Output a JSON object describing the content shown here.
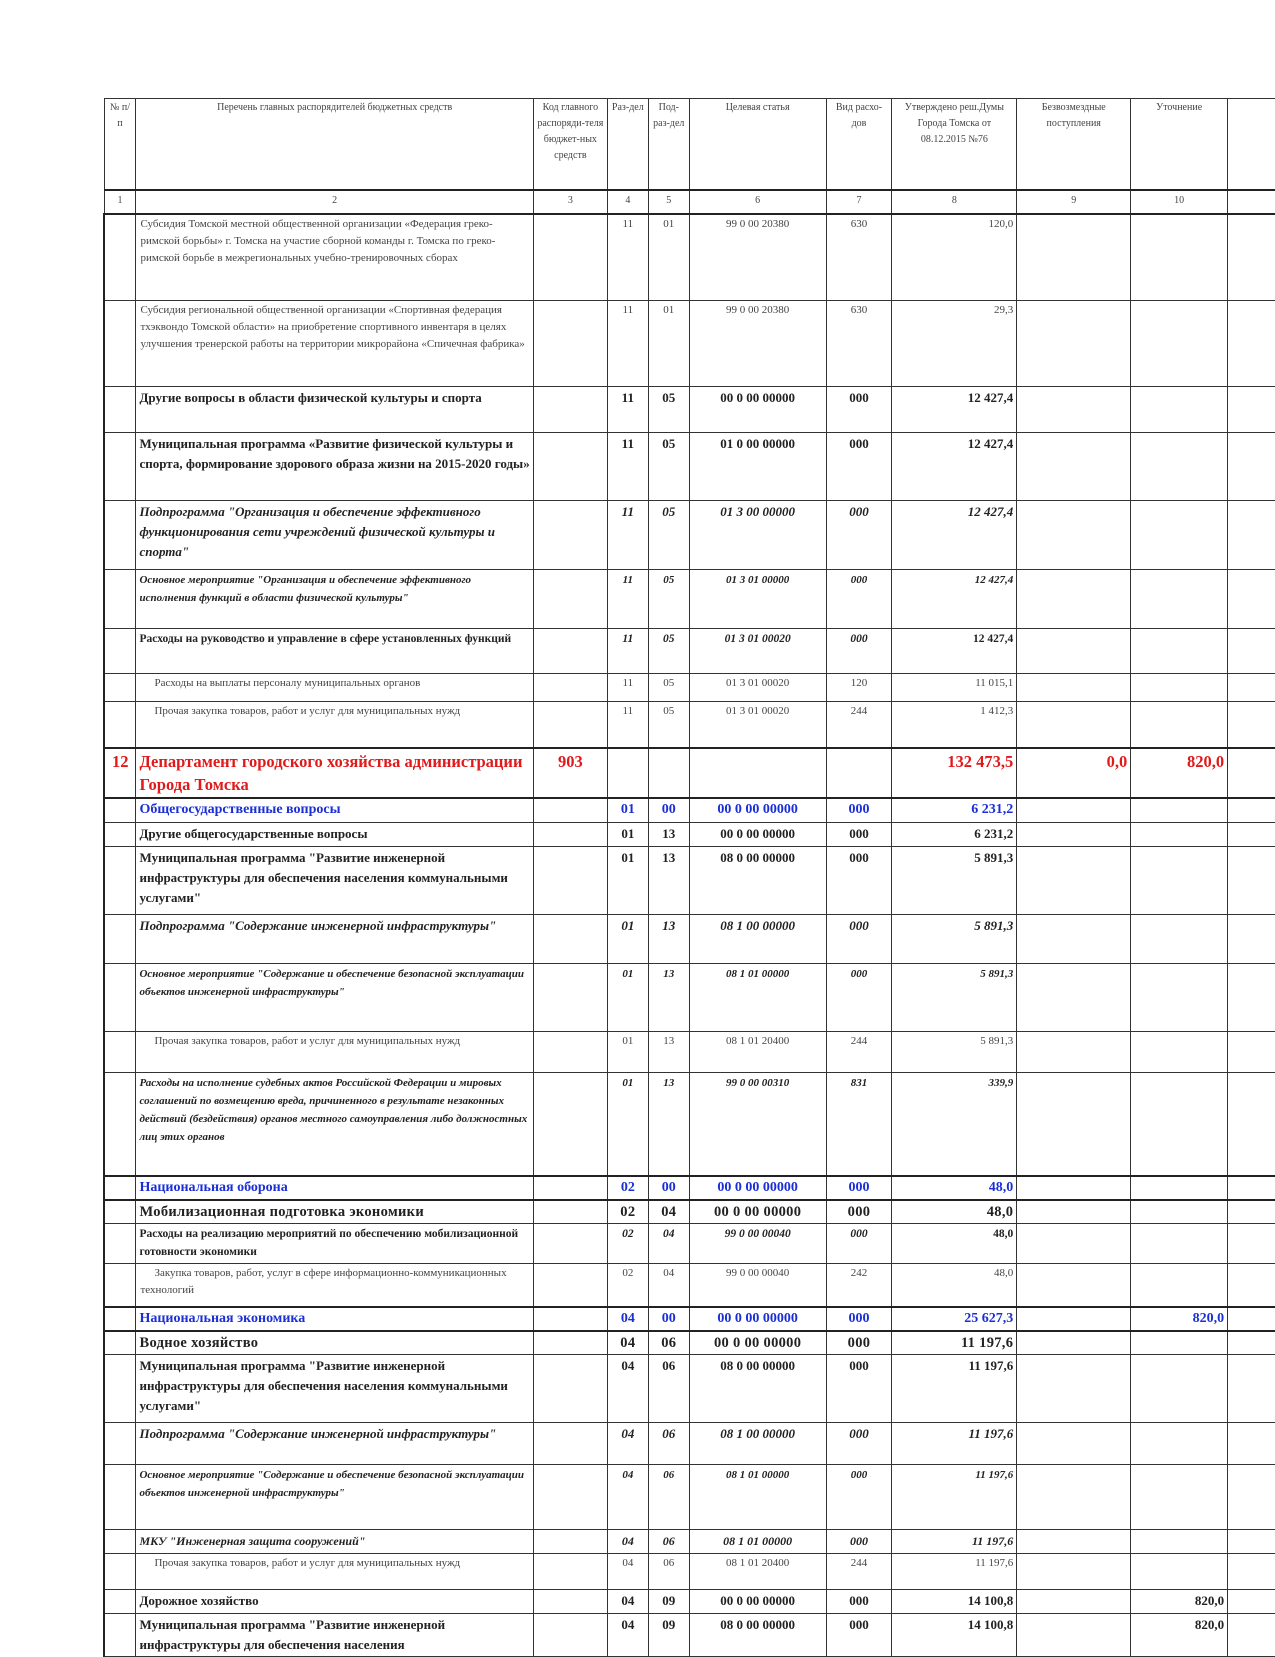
{
  "header": {
    "columns": [
      "№ п/п",
      "Перечень главных распорядителей бюджетных средств",
      "Код главного распоряди-теля бюджет-ных средств",
      "Раз-дел",
      "Под-раз-дел",
      "Целевая статья",
      "Вид расхо-дов",
      "Утверждено реш.Думы Города Томска от 08.12.2015 №76",
      "Безвозмездные поступления",
      "Уточнение",
      ""
    ],
    "numbers": [
      "1",
      "2",
      "3",
      "4",
      "5",
      "6",
      "7",
      "8",
      "9",
      "10",
      ""
    ]
  },
  "rows": [
    {
      "style": "plain",
      "num": "",
      "name": "Субсидия Томской местной общественной организации «Федерация греко-римской борьбы» г. Томска на участие сборной команды г. Томска по греко-римской борьбе в межрегиональных учебно-тренировочных сборах",
      "code": "",
      "razdel": "11",
      "podrazdel": "01",
      "cs": "99 0 00 20380",
      "vr": "630",
      "approved": "120,0",
      "bezv": "",
      "utoch": ""
    },
    {
      "style": "plain",
      "num": "",
      "name": "Субсидия региональной общественной организации «Спортивная федерация тхэквондо Томской области» на приобретение спортивного инвентаря в целях улучшения тренерской работы на территории микрорайона «Спичечная фабрика»",
      "code": "",
      "razdel": "11",
      "podrazdel": "01",
      "cs": "99 0 00 20380",
      "vr": "630",
      "approved": "29,3",
      "bezv": "",
      "utoch": ""
    },
    {
      "style": "bold",
      "num": "",
      "name": "Другие вопросы в области физической культуры и спорта",
      "code": "",
      "razdel": "11",
      "podrazdel": "05",
      "cs": "00 0 00 00000",
      "vr": "000",
      "approved": "12 427,4",
      "bezv": "",
      "utoch": ""
    },
    {
      "style": "bold",
      "num": "",
      "name": "Муниципальная программа «Развитие физической культуры и спорта, формирование здорового образа жизни на 2015-2020 годы»",
      "code": "",
      "razdel": "11",
      "podrazdel": "05",
      "cs": "01 0 00 00000",
      "vr": "000",
      "approved": "12 427,4",
      "bezv": "",
      "utoch": ""
    },
    {
      "style": "bi",
      "num": "",
      "name": "Подпрограмма \"Организация и обеспечение эффективного функционирования сети учреждений физической культуры и спорта\"",
      "code": "",
      "razdel": "11",
      "podrazdel": "05",
      "cs": "01 3 00 00000",
      "vr": "000",
      "approved": "12 427,4",
      "bezv": "",
      "utoch": ""
    },
    {
      "style": "bism",
      "num": "",
      "name": " Основное мероприятие \"Организация и обеспечение эффективного исполнения функций в области физической культуры\"",
      "code": "",
      "razdel": "11",
      "podrazdel": "05",
      "cs": "01 3 01 00000",
      "vr": "000",
      "approved": "12 427,4",
      "bezv": "",
      "utoch": ""
    },
    {
      "style": "boldsm",
      "num": "",
      "name": "Расходы на руководство и управление в сфере установленных функций",
      "code": "",
      "razdel": "11",
      "podrazdel": "05",
      "cs": "01 3 01 00020",
      "vr": "000",
      "approved": "12 427,4",
      "bezv": "",
      "utoch": ""
    },
    {
      "style": "plain indent",
      "num": "",
      "name": "Расходы на выплаты персоналу муниципальных органов",
      "code": "",
      "razdel": "11",
      "podrazdel": "05",
      "cs": "01 3 01 00020",
      "vr": "120",
      "approved": "11 015,1",
      "bezv": "",
      "utoch": ""
    },
    {
      "style": "plain indent",
      "num": "",
      "name": "Прочая закупка товаров, работ и услуг для муниципальных нужд",
      "code": "",
      "razdel": "11",
      "podrazdel": "05",
      "cs": "01 3 01 00020",
      "vr": "244",
      "approved": "1 412,3",
      "bezv": "",
      "utoch": ""
    },
    {
      "style": "red",
      "num": "12",
      "name": "Департамент городского хозяйства администрации Города Томска",
      "code": "903",
      "razdel": "",
      "podrazdel": "",
      "cs": "",
      "vr": "",
      "approved": "132 473,5",
      "bezv": "0,0",
      "utoch": "820,0"
    },
    {
      "style": "blue",
      "num": "",
      "name": "Общегосударственные вопросы",
      "code": "",
      "razdel": "01",
      "podrazdel": "00",
      "cs": "00 0 00 00000",
      "vr": "000",
      "approved": "6 231,2",
      "bezv": "",
      "utoch": ""
    },
    {
      "style": "bold",
      "num": "",
      "name": "Другие общегосударственные вопросы",
      "code": "",
      "razdel": "01",
      "podrazdel": "13",
      "cs": "00 0 00 00000",
      "vr": "000",
      "approved": "6 231,2",
      "bezv": "",
      "utoch": ""
    },
    {
      "style": "bold",
      "num": "",
      "name": "Муниципальная программа \"Развитие инженерной инфраструктуры для обеспечения населения коммунальными услугами\"",
      "code": "",
      "razdel": "01",
      "podrazdel": "13",
      "cs": "08 0 00 00000",
      "vr": "000",
      "approved": "5 891,3",
      "bezv": "",
      "utoch": ""
    },
    {
      "style": "bi",
      "num": "",
      "name": "Подпрограмма \"Содержание инженерной инфраструктуры\"",
      "code": "",
      "razdel": "01",
      "podrazdel": "13",
      "cs": "08 1 00 00000",
      "vr": "000",
      "approved": "5 891,3",
      "bezv": "",
      "utoch": ""
    },
    {
      "style": "bism",
      "num": "",
      "name": "Основное мероприятие \"Содержание и обеспечение безопасной эксплуатации объектов инженерной инфраструктуры\"",
      "code": "",
      "razdel": "01",
      "podrazdel": "13",
      "cs": "08 1 01 00000",
      "vr": "000",
      "approved": "5 891,3",
      "bezv": "",
      "utoch": ""
    },
    {
      "style": "plain indent",
      "num": "",
      "name": "Прочая закупка товаров, работ и услуг для муниципальных нужд",
      "code": "",
      "razdel": "01",
      "podrazdel": "13",
      "cs": "08 1 01 20400",
      "vr": "244",
      "approved": "5 891,3",
      "bezv": "",
      "utoch": ""
    },
    {
      "style": "bism",
      "num": "",
      "name": " Расходы на исполнение судебных актов Российской Федерации и мировых соглашений по возмещению вреда, причиненного в результате незаконных действий (бездействия) органов местного самоуправления либо должностных лиц этих органов",
      "code": "",
      "razdel": "01",
      "podrazdel": "13",
      "cs": "99 0 00 00310",
      "vr": "831",
      "approved": "339,9",
      "bezv": "",
      "utoch": ""
    },
    {
      "style": "blue",
      "num": "",
      "name": "Национальная оборона",
      "code": "",
      "razdel": "02",
      "podrazdel": "00",
      "cs": "00 0 00 00000",
      "vr": "000",
      "approved": "48,0",
      "bezv": "",
      "utoch": ""
    },
    {
      "style": "bigbold",
      "num": "",
      "name": "Мобилизационная подготовка экономики",
      "code": "",
      "razdel": "02",
      "podrazdel": "04",
      "cs": "00 0 00 00000",
      "vr": "000",
      "approved": "48,0",
      "bezv": "",
      "utoch": ""
    },
    {
      "style": "boldsm",
      "num": "",
      "name": "Расходы на реализацию мероприятий по обеспечению мобилизационной готовности экономики",
      "code": "",
      "razdel": "02",
      "podrazdel": "04",
      "cs": "99 0 00 00040",
      "vr": "000",
      "approved": "48,0",
      "bezv": "",
      "utoch": ""
    },
    {
      "style": "plain indent",
      "num": "",
      "name": "Закупка товаров, работ, услуг в сфере информационно-коммуникационных технологий",
      "code": "",
      "razdel": "02",
      "podrazdel": "04",
      "cs": "99 0 00 00040",
      "vr": "242",
      "approved": "48,0",
      "bezv": "",
      "utoch": ""
    },
    {
      "style": "blue",
      "num": "",
      "name": "Национальная экономика",
      "code": "",
      "razdel": "04",
      "podrazdel": "00",
      "cs": "00 0 00 00000",
      "vr": "000",
      "approved": "25 627,3",
      "bezv": "",
      "utoch": "820,0"
    },
    {
      "style": "bigbold",
      "num": "",
      "name": "Водное хозяйство",
      "code": "",
      "razdel": "04",
      "podrazdel": "06",
      "cs": "00 0 00 00000",
      "vr": "000",
      "approved": "11 197,6",
      "bezv": "",
      "utoch": ""
    },
    {
      "style": "bold",
      "num": "",
      "name": "Муниципальная программа \"Развитие инженерной инфраструктуры для обеспечения населения коммунальными услугами\"",
      "code": "",
      "razdel": "04",
      "podrazdel": "06",
      "cs": "08 0 00 00000",
      "vr": "000",
      "approved": "11 197,6",
      "bezv": "",
      "utoch": ""
    },
    {
      "style": "bi",
      "num": "",
      "name": " Подпрограмма \"Содержание инженерной инфраструктуры\"",
      "code": "",
      "razdel": "04",
      "podrazdel": "06",
      "cs": "08 1 00 00000",
      "vr": "000",
      "approved": "11 197,6",
      "bezv": "",
      "utoch": ""
    },
    {
      "style": "bism",
      "num": "",
      "name": "Основное мероприятие \"Содержание и обеспечение безопасной эксплуатации объектов инженерной инфраструктуры\"",
      "code": "",
      "razdel": "04",
      "podrazdel": "06",
      "cs": "08 1 01 00000",
      "vr": "000",
      "approved": "11 197,6",
      "bezv": "",
      "utoch": ""
    },
    {
      "style": "ital",
      "num": "",
      "name": "МКУ \"Инженерная защита сооружений\"",
      "code": "",
      "razdel": "04",
      "podrazdel": "06",
      "cs": "08 1 01 00000",
      "vr": "000",
      "approved": "11 197,6",
      "bezv": "",
      "utoch": ""
    },
    {
      "style": "plain indent",
      "num": "",
      "name": "Прочая закупка товаров, работ и услуг для муниципальных нужд",
      "code": "",
      "razdel": "04",
      "podrazdel": "06",
      "cs": "08 1 01 20400",
      "vr": "244",
      "approved": "11 197,6",
      "bezv": "",
      "utoch": ""
    },
    {
      "style": "bold",
      "num": "",
      "name": "Дорожное хозяйство",
      "code": "",
      "razdel": "04",
      "podrazdel": "09",
      "cs": "00 0 00 00000",
      "vr": "000",
      "approved": "14 100,8",
      "bezv": "",
      "utoch": "820,0"
    },
    {
      "style": "bold",
      "num": "",
      "name": "Муниципальная программа \"Развитие инженерной инфраструктуры для обеспечения населения",
      "code": "",
      "razdel": "04",
      "podrazdel": "09",
      "cs": "08 0 00 00000",
      "vr": "000",
      "approved": "14 100,8",
      "bezv": "",
      "utoch": "820,0"
    }
  ]
}
